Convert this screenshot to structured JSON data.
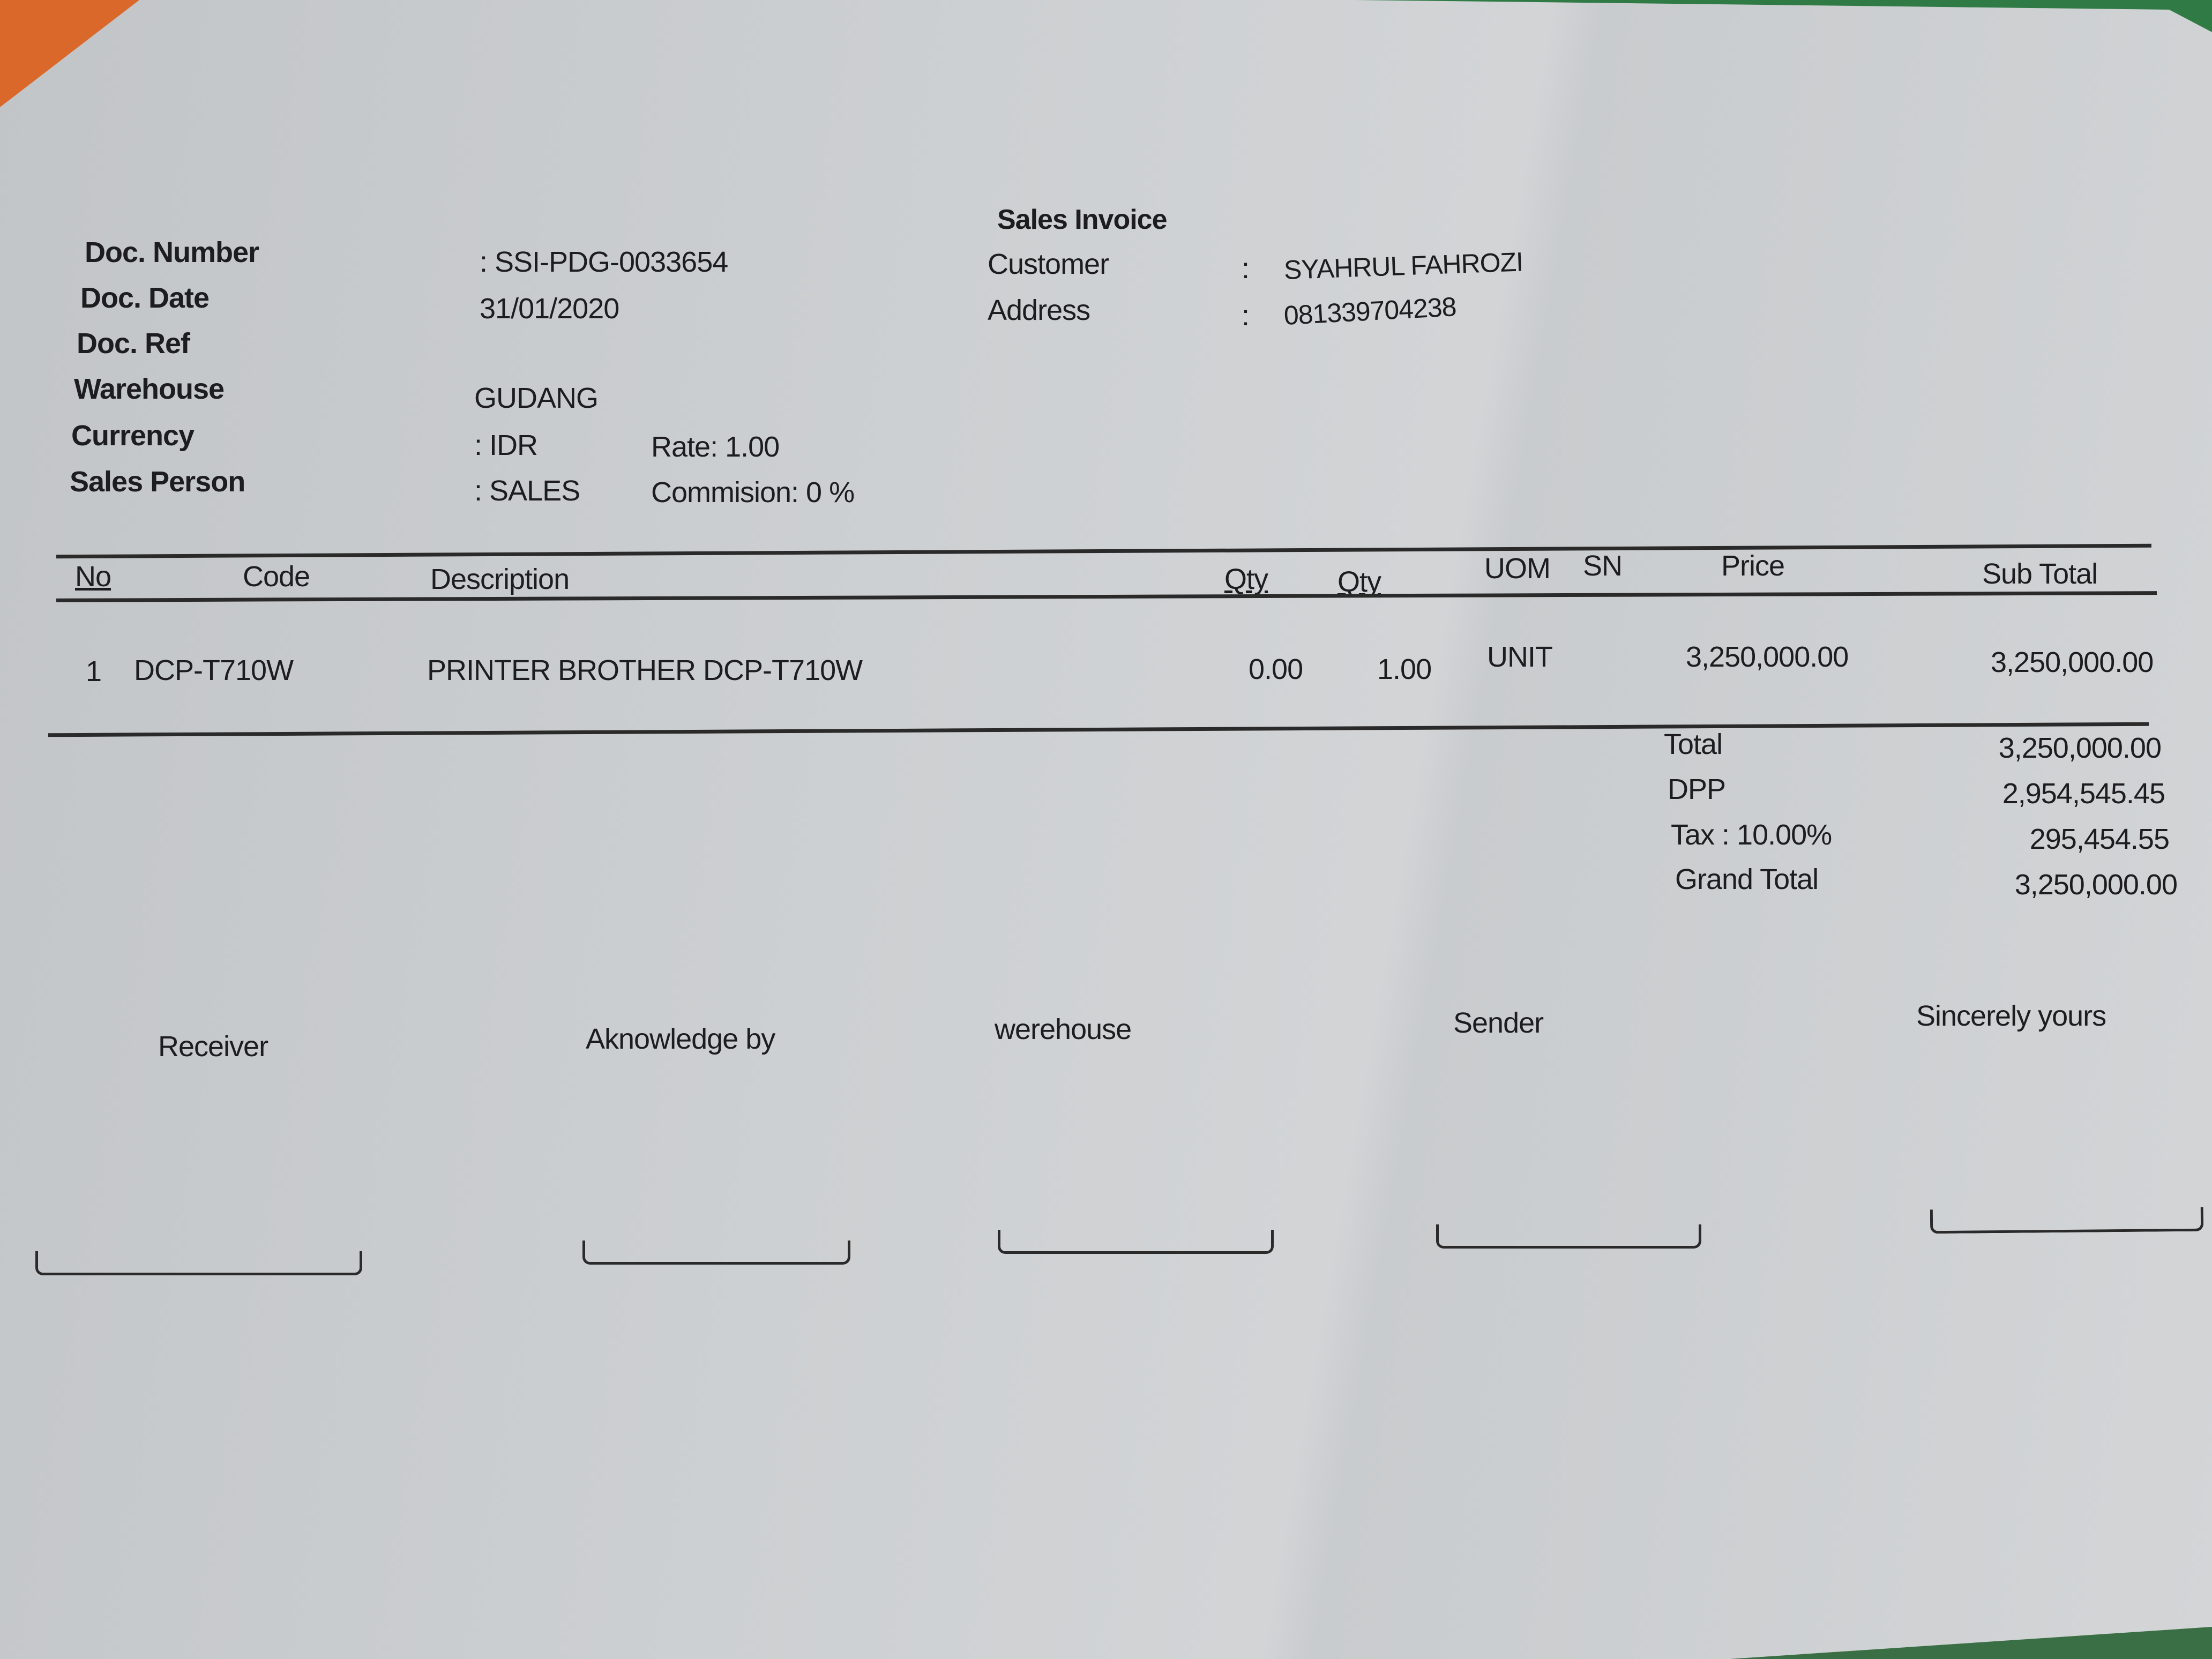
{
  "title": "Sales Invoice",
  "header": {
    "doc_number_label": "Doc. Number",
    "doc_number": ": SSI-PDG-0033654",
    "doc_date_label": "Doc. Date",
    "doc_date": "31/01/2020",
    "doc_ref_label": "Doc. Ref",
    "warehouse_label": "Warehouse",
    "warehouse": "GUDANG",
    "currency_label": "Currency",
    "currency": ": IDR",
    "rate": "Rate: 1.00",
    "sales_person_label": "Sales Person",
    "sales_person": ": SALES",
    "commission": "Commision: 0 %",
    "customer_label": "Customer",
    "customer": "SYAHRUL FAHROZI",
    "address_label": "Address",
    "address": "081339704238",
    "colon": ":"
  },
  "table": {
    "columns": [
      "No",
      "Code",
      "Description",
      "Qty",
      "Qty",
      "UOM",
      "SN",
      "Price",
      "Sub Total"
    ],
    "rows": [
      {
        "no": "1",
        "code": "DCP-T710W",
        "description": "PRINTER BROTHER DCP-T710W",
        "qty1": "0.00",
        "qty2": "1.00",
        "uom": "UNIT",
        "sn": "",
        "price": "3,250,000.00",
        "subtotal": "3,250,000.00"
      }
    ]
  },
  "totals": [
    {
      "label": "Total",
      "value": "3,250,000.00"
    },
    {
      "label": "DPP",
      "value": "2,954,545.45"
    },
    {
      "label": "Tax : 10.00%",
      "value": "295,454.55"
    },
    {
      "label": "Grand Total",
      "value": "3,250,000.00"
    }
  ],
  "signatures": [
    "Receiver",
    "Aknowledge by",
    "werehouse",
    "Sender",
    "Sincerely yours"
  ]
}
